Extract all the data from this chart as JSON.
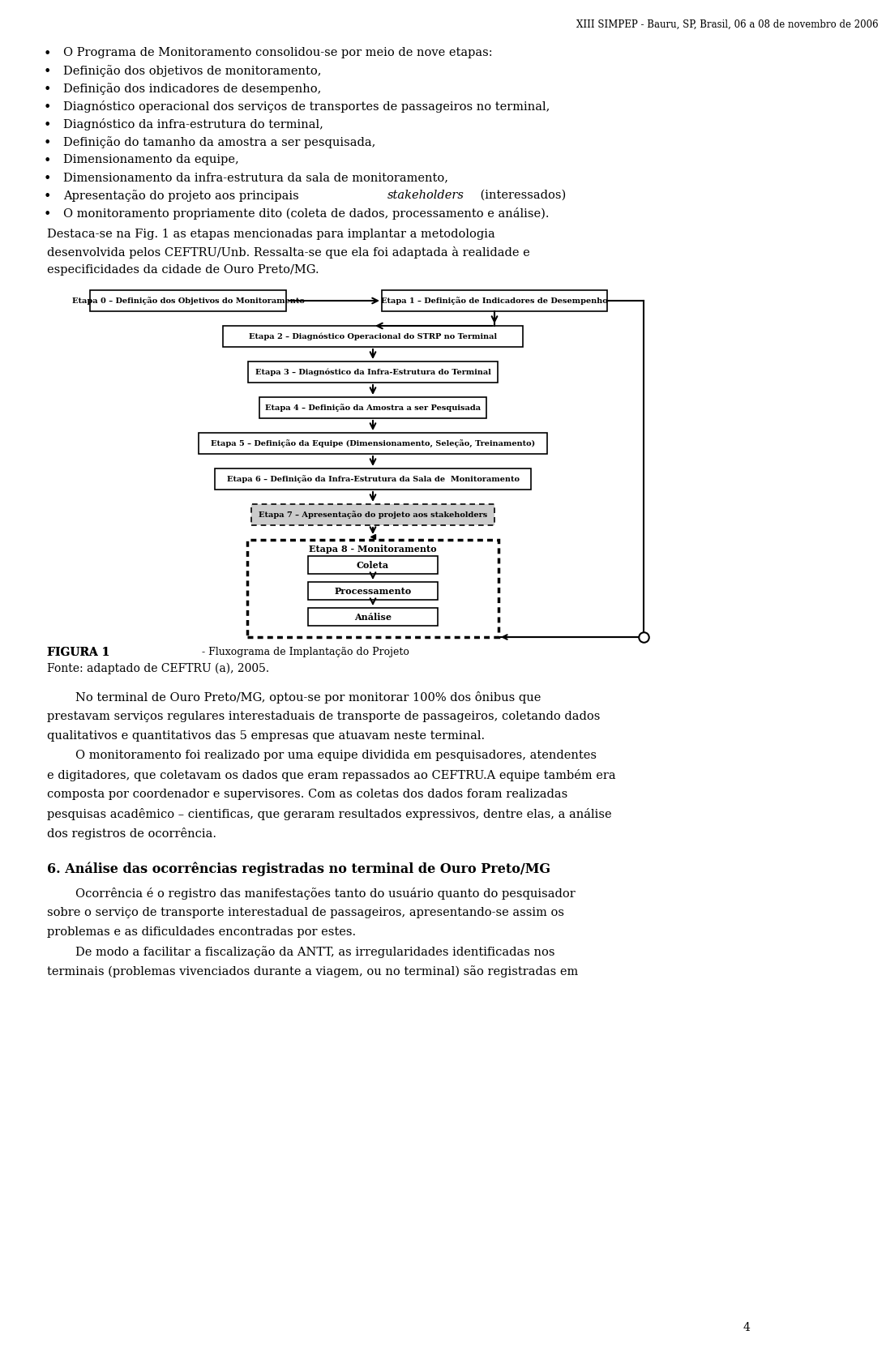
{
  "header": "XIII SIMPEP - Bauru, SP, Brasil, 06 a 08 de novembro de 2006",
  "bullet_points": [
    "O Programa de Monitoramento consolidou-se por meio de nove etapas:",
    "Definição dos objetivos de monitoramento,",
    "Definição dos indicadores de desempenho,",
    "Diagnóstico operacional dos serviços de transportes de passageiros no terminal,",
    "Diagnóstico da infra-estrutura do terminal,",
    "Definição do tamanho da amostra a ser pesquisada,",
    "Dimensionamento da equipe,",
    "Dimensionamento da infra-estrutura da sala de monitoramento,",
    "Apresentação do projeto aos principais ",
    "stakeholders",
    " (interessados)",
    "O monitoramento propriamente dito (coleta de dados, processamento e análise)."
  ],
  "para1_line1": "Destaca-se na Fig. 1 as etapas mencionadas para implantar a metodologia",
  "para1_line2": "desenvolvida pelos CEFTRU/Unb. Ressalta-se que ela foi adaptada à realidade e",
  "para1_line3": "especificidades da cidade de Ouro Preto/MG.",
  "figura_caption_bold": "FIGURA 1",
  "figura_caption_rest": " - Fluxograma de Implantação do Projeto",
  "figura_fonte": "Fonte: adaptado de CEFTRU (a), 2005.",
  "para2_lines": [
    "No terminal de Ouro Preto/MG, optou-se por monitorar 100% dos ônibus que",
    "prestavam serviços regulares interestaduais de transporte de passageiros, coletando dados",
    "qualitativos e quantitativos das 5 empresas que atuavam neste terminal."
  ],
  "para3_lines": [
    "O monitoramento foi realizado por uma equipe dividida em pesquisadores, atendentes",
    "e digitadores, que coletavam os dados que eram repassados ao CEFTRU.A equipe também era",
    "composta por coordenador e supervisores. Com as coletas dos dados foram realizadas",
    "pesquisas acadêmico – cientificas, que geraram resultados expressivos, dentre elas, a análise",
    "dos registros de ocorrência."
  ],
  "section_title": "6. Análise das ocorrências registradas no terminal de Ouro Preto/MG",
  "para4_lines": [
    "Ocorrência é o registro das manifestações tanto do usuário quanto do pesquisador",
    "sobre o serviço de transporte interestadual de passageiros, apresentando-se assim os",
    "problemas e as dificuldades encontradas por estes."
  ],
  "para5_lines": [
    "De modo a facilitar a fiscalização da ANTT, as irregularidades identificadas nos",
    "terminais (problemas vivenciados durante a viagem, ou no terminal) são registradas em"
  ],
  "page_number": "4",
  "bg_color": "#ffffff",
  "flowchart_boxes": [
    "Etapa 0 – Definição dos Objetivos do Monitoramento",
    "Etapa 1 – Definição de Indicadores de Desempenho",
    "Etapa 2 – Diagnóstico Operacional do STRP no Terminal",
    "Etapa 3 – Diagnóstico da Infra-Estrutura do Terminal",
    "Etapa 4 – Definição da Amostra a ser Pesquisada",
    "Etapa 5 – Definição da Equipe (Dimensionamento, Seleção, Treinamento)",
    "Etapa 6 – Definição da Infra-Estrutura da Sala de  Monitoramento",
    "Etapa 7 – Apresentação do projeto aos stakeholders",
    "Etapa 8 - Monitoramento",
    "Coleta",
    "Processamento",
    "Análise"
  ]
}
